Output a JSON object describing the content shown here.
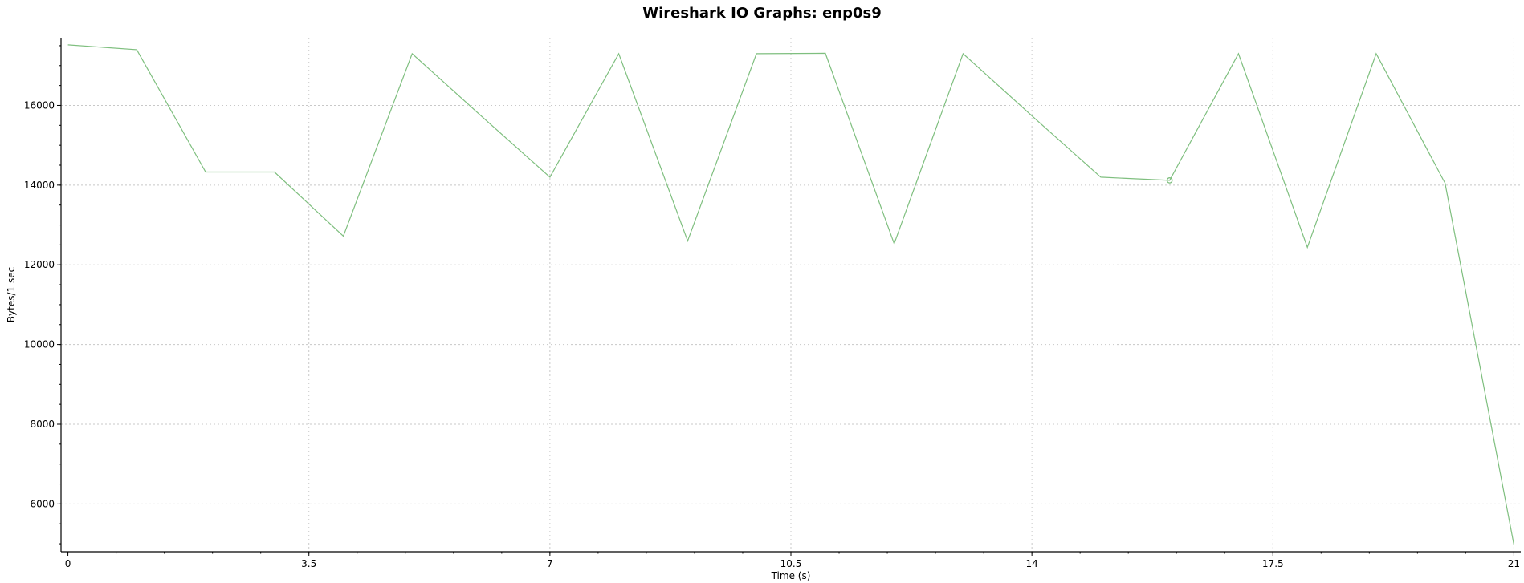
{
  "chart_data": {
    "type": "line",
    "title": "Wireshark IO Graphs: enp0s9",
    "xlabel": "Time (s)",
    "ylabel": "Bytes/1 sec",
    "xlim": [
      -0.1,
      21.1
    ],
    "ylim": [
      4800,
      17700
    ],
    "x_ticks": [
      "0",
      "3.5",
      "7",
      "10.5",
      "14",
      "17.5",
      "21"
    ],
    "y_ticks": [
      "6000",
      "8000",
      "10000",
      "12000",
      "14000",
      "16000"
    ],
    "grid": true,
    "series": [
      {
        "color": "#7fbf7f",
        "x": [
          0,
          1,
          2,
          3,
          4,
          5,
          6,
          7,
          8,
          9,
          10,
          11,
          12,
          13,
          14,
          15,
          16,
          17,
          18,
          19,
          20,
          21
        ],
        "y": [
          17520,
          17400,
          14330,
          14330,
          12720,
          17300,
          15740,
          14200,
          17300,
          12600,
          17300,
          17310,
          12530,
          17300,
          15740,
          14200,
          14120,
          17300,
          12440,
          17300,
          14050,
          4980
        ],
        "highlight_index": 16
      }
    ]
  }
}
